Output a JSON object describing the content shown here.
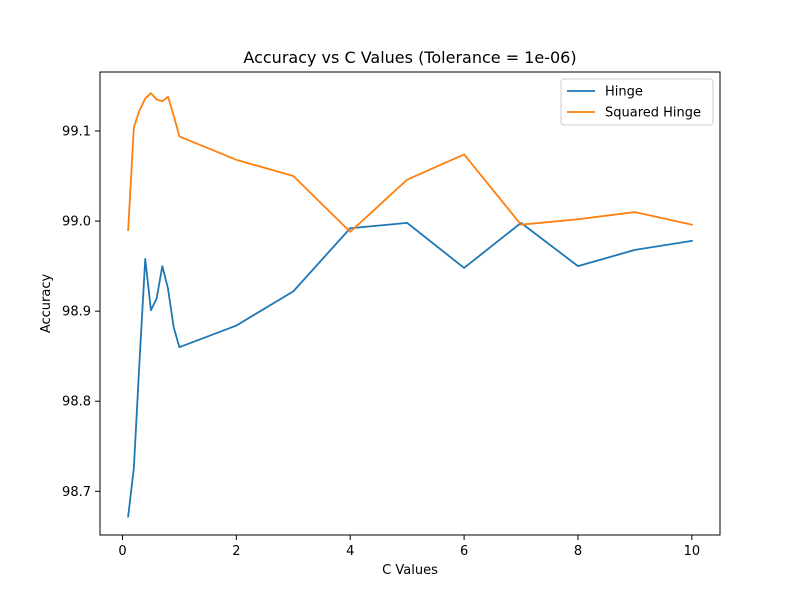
{
  "chart_data": {
    "type": "line",
    "title": "Accuracy vs C Values (Tolerance = 1e-06)",
    "xlabel": "C Values",
    "ylabel": "Accuracy",
    "xlim": [
      -0.3945,
      10.4945
    ],
    "ylim": [
      98.6515,
      99.1655
    ],
    "x_ticks": [
      0,
      2,
      4,
      6,
      8,
      10
    ],
    "x_tick_labels": [
      "0",
      "2",
      "4",
      "6",
      "8",
      "10"
    ],
    "y_ticks": [
      98.7,
      98.8,
      98.9,
      99.0,
      99.1
    ],
    "y_tick_labels": [
      "98.7",
      "98.8",
      "98.9",
      "99.0",
      "99.1"
    ],
    "grid": false,
    "legend_position": "upper right",
    "series": [
      {
        "name": "Hinge",
        "color": "#1f77b4",
        "x": [
          0.1,
          0.2,
          0.3,
          0.4,
          0.5,
          0.6,
          0.7,
          0.8,
          0.9,
          1,
          2,
          3,
          4,
          5,
          6,
          7,
          8,
          9,
          10
        ],
        "y": [
          98.672,
          98.726,
          98.845,
          98.958,
          98.901,
          98.914,
          98.95,
          98.925,
          98.882,
          98.86,
          98.884,
          98.922,
          98.992,
          98.998,
          98.948,
          98.998,
          98.95,
          98.968,
          98.978
        ]
      },
      {
        "name": "Squared Hinge",
        "color": "#ff7f0e",
        "x": [
          0.1,
          0.2,
          0.3,
          0.4,
          0.5,
          0.6,
          0.7,
          0.8,
          0.9,
          1,
          2,
          3,
          4,
          5,
          6,
          7,
          8,
          9,
          10
        ],
        "y": [
          98.99,
          99.104,
          99.123,
          99.136,
          99.142,
          99.135,
          99.133,
          99.138,
          99.117,
          99.094,
          99.068,
          99.05,
          98.988,
          99.046,
          99.074,
          98.996,
          99.002,
          99.01,
          98.996
        ]
      }
    ]
  }
}
